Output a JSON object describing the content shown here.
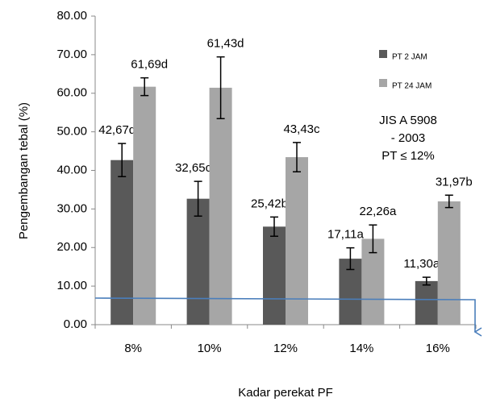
{
  "chart_data": {
    "type": "bar",
    "y_label": "Pengembangan tebal (%)",
    "x_label": "Kadar perekat PF",
    "categories": [
      "8%",
      "10%",
      "12%",
      "14%",
      "16%"
    ],
    "series": [
      {
        "name": "PT 2 JAM",
        "color": "#595959",
        "values": [
          42.67,
          32.65,
          25.42,
          17.11,
          11.3
        ],
        "errors": [
          4.3,
          4.5,
          2.5,
          2.8,
          1.0
        ],
        "value_labels": [
          "42,67d",
          "32,65c",
          "25,42b",
          "17,11a",
          "11,30a"
        ]
      },
      {
        "name": "PT 24 JAM",
        "color": "#a6a6a6",
        "values": [
          61.69,
          61.43,
          43.43,
          22.26,
          31.97
        ],
        "errors": [
          2.3,
          8.0,
          3.8,
          3.6,
          1.6
        ],
        "value_labels": [
          "61,69d",
          "61,43d",
          "43,43c",
          "22,26a",
          "31,97b"
        ]
      }
    ],
    "ylim": [
      0,
      80
    ],
    "yticks": [
      {
        "value": 0,
        "label": "0.00"
      },
      {
        "value": 10,
        "label": "10.00"
      },
      {
        "value": 20,
        "label": "20.00"
      },
      {
        "value": 30,
        "label": "30.00"
      },
      {
        "value": 40,
        "label": "40.00"
      },
      {
        "value": 50,
        "label": "50.00"
      },
      {
        "value": 60,
        "label": "60.00"
      },
      {
        "value": 70,
        "label": "70.00"
      },
      {
        "value": 80,
        "label": "80.00"
      }
    ],
    "annotations": [
      "JIS A 5908",
      "- 2003",
      "PT ≤ 12%"
    ]
  }
}
